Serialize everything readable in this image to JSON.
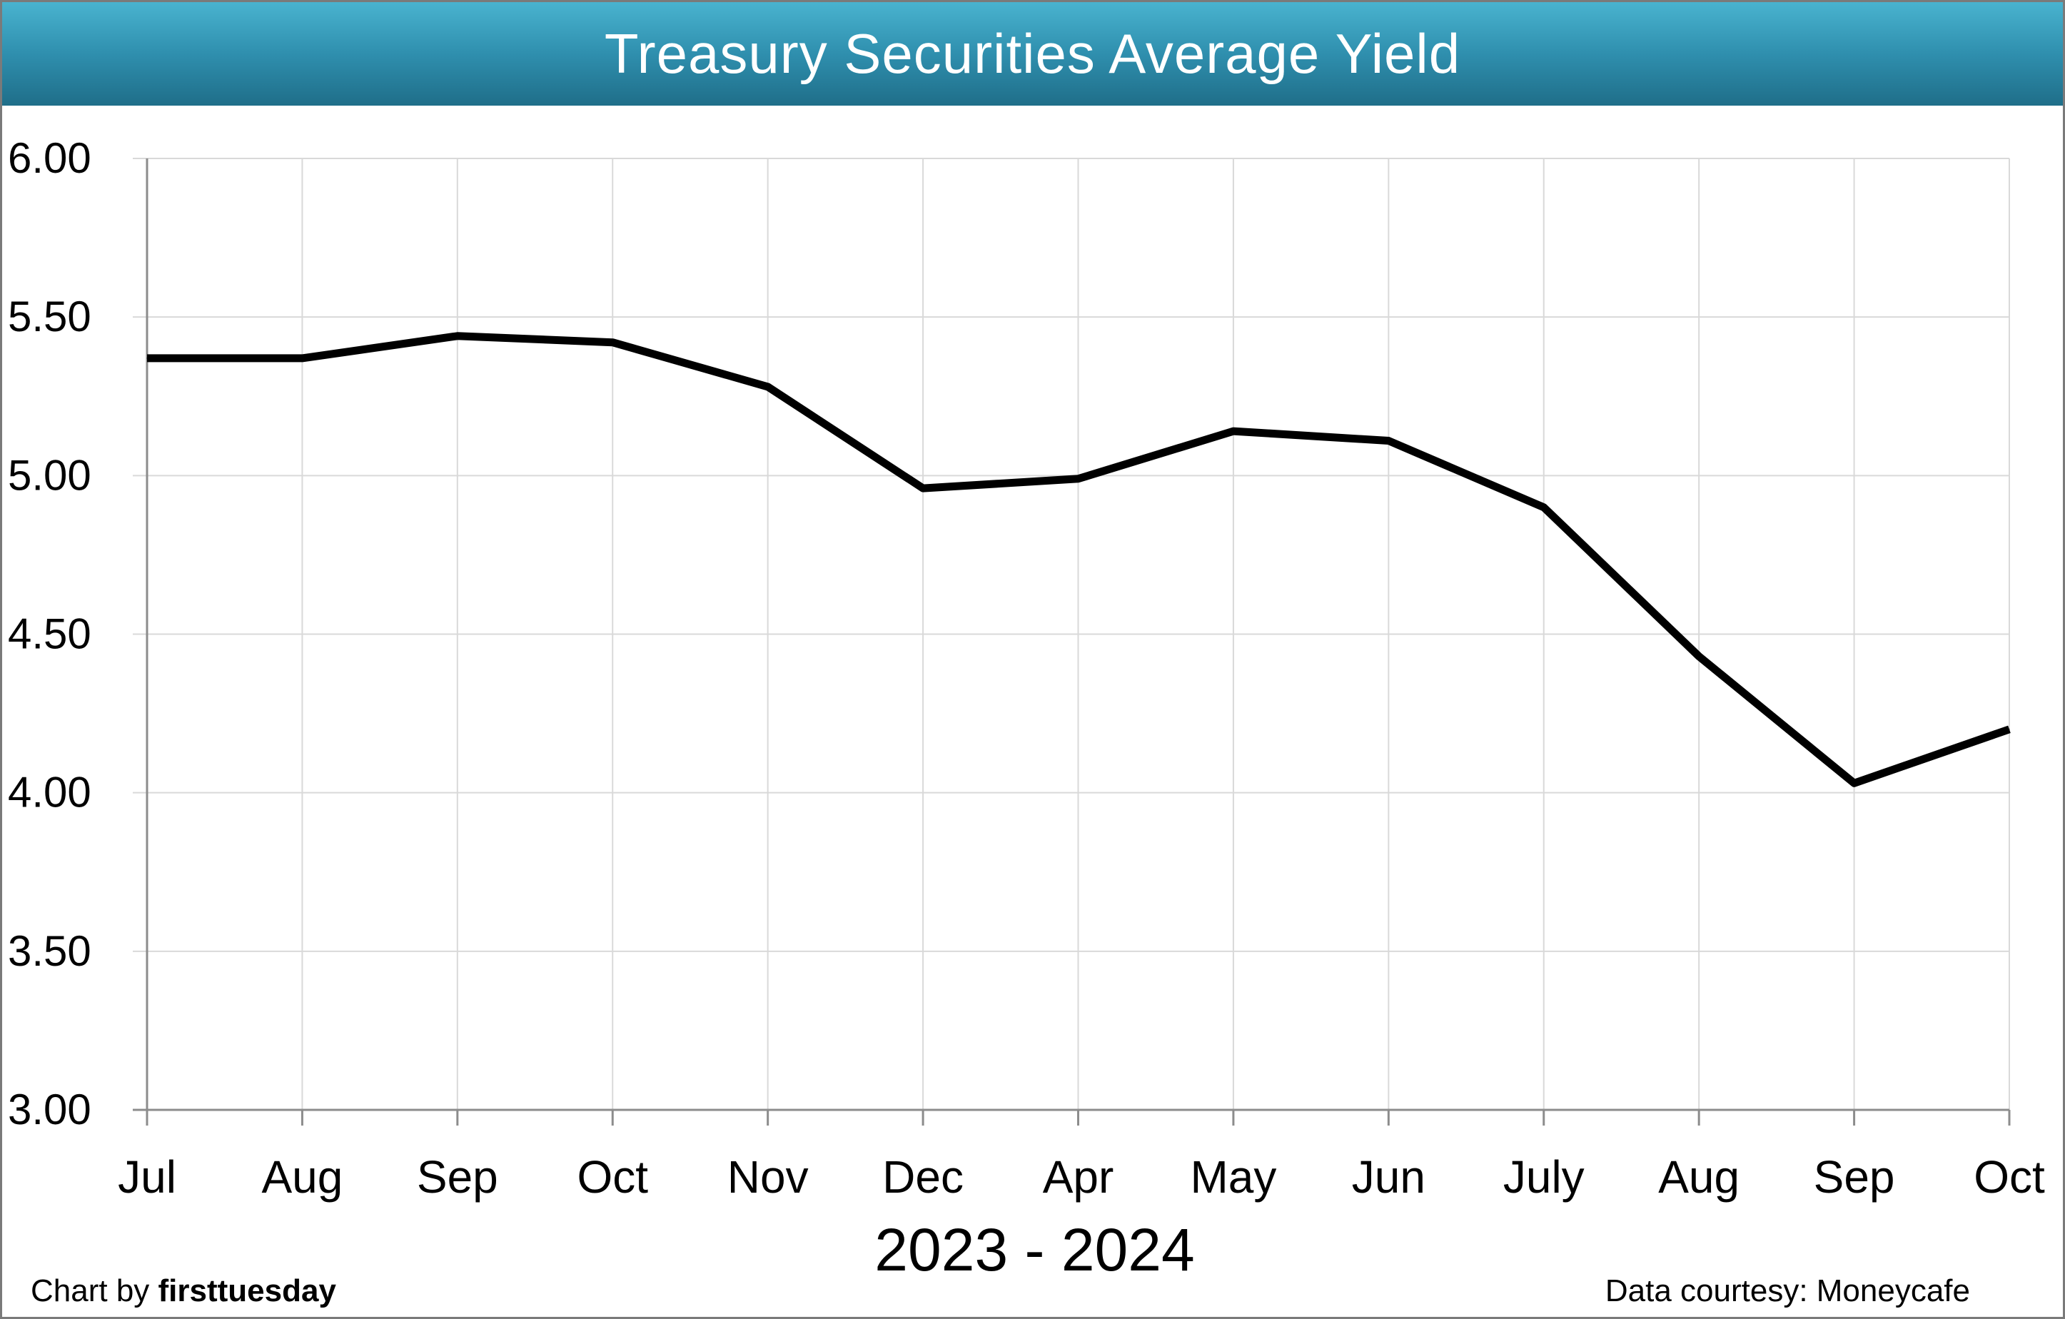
{
  "chart_data": {
    "type": "line",
    "title": "Treasury Securities Average Yield",
    "xlabel": "2023 - 2024",
    "ylabel": "",
    "categories": [
      "Jul",
      "Aug",
      "Sep",
      "Oct",
      "Nov",
      "Dec",
      "Apr",
      "May",
      "Jun",
      "July",
      "Aug",
      "Sep",
      "Oct"
    ],
    "series": [
      {
        "values": [
          5.37,
          5.37,
          5.44,
          5.42,
          5.28,
          4.96,
          4.99,
          5.14,
          5.11,
          4.9,
          4.43,
          4.03,
          4.2
        ]
      }
    ],
    "ylim": [
      3.0,
      6.0
    ],
    "yticks": [
      "6.00",
      "5.50",
      "5.00",
      "4.50",
      "4.00",
      "3.50",
      "3.00"
    ],
    "grid": true,
    "line_color": "#000000"
  },
  "footer": {
    "credit_prefix": "Chart by ",
    "credit_brand": "firsttuesday",
    "source": "Data courtesy: Moneycafe"
  },
  "colors": {
    "banner_top": "#49b3cf",
    "banner_bottom": "#1f6e89",
    "grid": "#d9d9d9",
    "axis": "#8c8c8c"
  }
}
